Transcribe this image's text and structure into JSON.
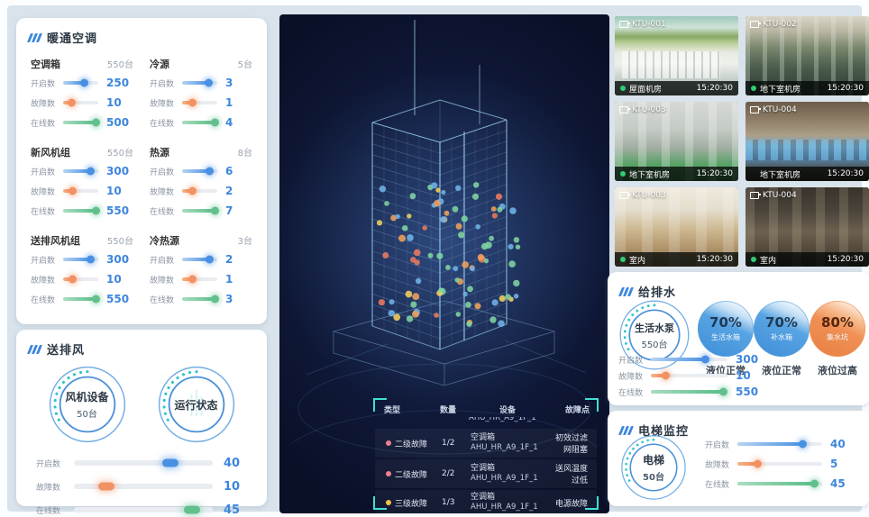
{
  "colors": {
    "accent_blue": "#3d86dd",
    "accent_orange": "#f29263",
    "accent_green": "#62c08e",
    "accent_cyan": "#2ec4cc",
    "bracket_cyan": "#3fe0d4",
    "value_blue": "#3d86dd"
  },
  "hvac": {
    "title": "暖通空调",
    "groups": [
      {
        "name": "空调箱",
        "count": "550台",
        "rows": [
          {
            "label": "开启数",
            "value": "250",
            "pct": 62
          },
          {
            "label": "故障数",
            "value": "10",
            "pct": 26
          },
          {
            "label": "在线数",
            "value": "500",
            "pct": 95
          }
        ]
      },
      {
        "name": "冷源",
        "count": "5台",
        "rows": [
          {
            "label": "开启数",
            "value": "3",
            "pct": 78
          },
          {
            "label": "故障数",
            "value": "1",
            "pct": 30
          },
          {
            "label": "在线数",
            "value": "4",
            "pct": 95
          }
        ]
      },
      {
        "name": "新风机组",
        "count": "550台",
        "rows": [
          {
            "label": "开启数",
            "value": "300",
            "pct": 80
          },
          {
            "label": "故障数",
            "value": "10",
            "pct": 27
          },
          {
            "label": "在线数",
            "value": "550",
            "pct": 95
          }
        ]
      },
      {
        "name": "热源",
        "count": "8台",
        "rows": [
          {
            "label": "开启数",
            "value": "6",
            "pct": 80
          },
          {
            "label": "故障数",
            "value": "2",
            "pct": 30
          },
          {
            "label": "在线数",
            "value": "7",
            "pct": 95
          }
        ]
      },
      {
        "name": "送排风机组",
        "count": "550台",
        "rows": [
          {
            "label": "开启数",
            "value": "300",
            "pct": 80
          },
          {
            "label": "故障数",
            "value": "10",
            "pct": 27
          },
          {
            "label": "在线数",
            "value": "550",
            "pct": 95
          }
        ]
      },
      {
        "name": "冷热源",
        "count": "3台",
        "rows": [
          {
            "label": "开启数",
            "value": "2",
            "pct": 80
          },
          {
            "label": "故障数",
            "value": "1",
            "pct": 30
          },
          {
            "label": "在线数",
            "value": "3",
            "pct": 95
          }
        ]
      }
    ]
  },
  "fan": {
    "title": "送排风",
    "gauges": [
      {
        "line1": "风机设备",
        "line2": "50台"
      },
      {
        "line1": "运行状态",
        "line2": ""
      }
    ],
    "rows": [
      {
        "label": "开启数",
        "value": "40",
        "pct": 70
      },
      {
        "label": "故障数",
        "value": "10",
        "pct": 24
      },
      {
        "label": "在线数",
        "value": "45",
        "pct": 86
      }
    ]
  },
  "building": {
    "table": {
      "headers": [
        "类型",
        "数量",
        "设备",
        "故障点"
      ],
      "clipped_device": "AHU_HR_A9_1F_1",
      "rows": [
        {
          "dot": "#f07f8e",
          "level": "二级故障",
          "qty": "1/2",
          "device_type": "空调箱",
          "device_id": "AHU_HR_A9_1F_1",
          "fault": "初效过滤网阻塞"
        },
        {
          "dot": "#f07f8e",
          "level": "二级故障",
          "qty": "2/2",
          "device_type": "空调箱",
          "device_id": "AHU_HR_A9_1F_1",
          "fault": "送风温度过低"
        },
        {
          "dot": "#f0c24a",
          "level": "三级故障",
          "qty": "1/3",
          "device_type": "空调箱",
          "device_id": "AHU_HR_A9_1F_1",
          "fault": "电源故障"
        }
      ]
    },
    "dots": {
      "count": 88,
      "palette": [
        "#7fd4a0",
        "#6fb3e8",
        "#f0a05a",
        "#f0d060",
        "#e87a60"
      ],
      "weights": [
        0.34,
        0.3,
        0.16,
        0.1,
        0.1
      ]
    }
  },
  "cameras": [
    {
      "id": "KTU-001",
      "location": "屋面机房",
      "time": "15:20:30",
      "dot": "#2ecc71"
    },
    {
      "id": "KTU-002",
      "location": "地下室机房",
      "time": "15:20:30",
      "dot": "#2ecc71"
    },
    {
      "id": "KTU-003",
      "location": "地下室机房",
      "time": "15:20:30",
      "dot": "#2ecc71"
    },
    {
      "id": "KTU-004",
      "location": "地下室机房",
      "time": "15:20:30",
      "dot": "transparent"
    },
    {
      "id": "KTU-003",
      "location": "室内",
      "time": "15:20:30",
      "dot": "#2ecc71"
    },
    {
      "id": "KTU-004",
      "location": "室内",
      "time": "15:20:30",
      "dot": "#2ecc71"
    }
  ],
  "water": {
    "title": "给排水",
    "gauge": {
      "line1": "生活水泵",
      "line2": "550台"
    },
    "rows": [
      {
        "label": "开启数",
        "value": "300",
        "pct": 72
      },
      {
        "label": "故障数",
        "value": "10",
        "pct": 20
      },
      {
        "label": "在线数",
        "value": "550",
        "pct": 95
      }
    ],
    "tanks": [
      {
        "pct": "70%",
        "name": "生活水箱",
        "status": "液位正常",
        "style": "blue"
      },
      {
        "pct": "70%",
        "name": "补水箱",
        "status": "液位正常",
        "style": "blue"
      },
      {
        "pct": "80%",
        "name": "集水坑",
        "status": "液位过高",
        "style": "orange"
      }
    ]
  },
  "elevator": {
    "title": "电梯监控",
    "gauge": {
      "line1": "电梯",
      "line2": "50台"
    },
    "rows": [
      {
        "label": "开启数",
        "value": "40",
        "pct": 78
      },
      {
        "label": "故障数",
        "value": "5",
        "pct": 24
      },
      {
        "label": "在线数",
        "value": "45",
        "pct": 92
      }
    ]
  }
}
